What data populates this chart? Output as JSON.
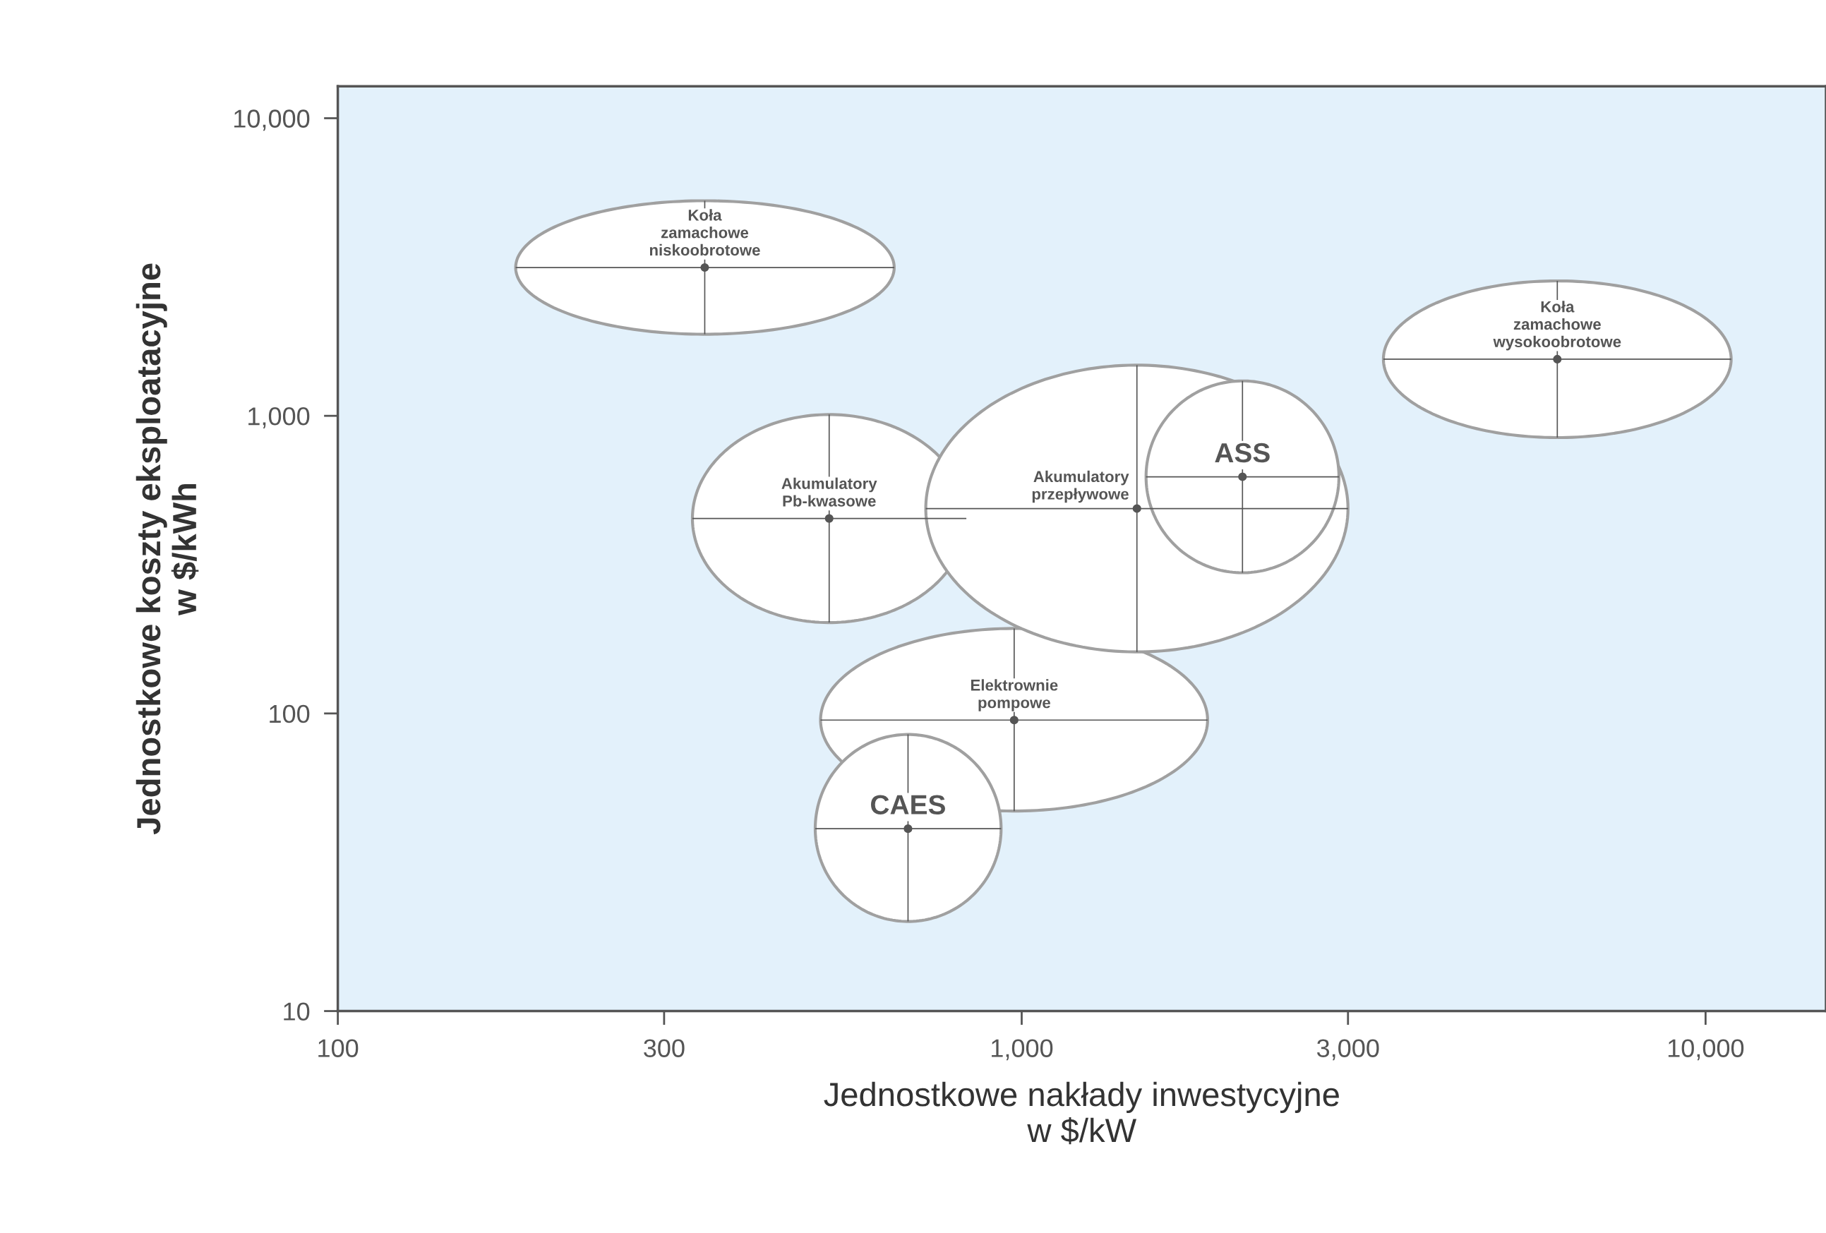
{
  "chart_data": {
    "type": "scatter",
    "xlabel": "Jednostkowe nakłady inwestycyjne\nw $/kW",
    "ylabel": "Jednostkowe koszty eksploatacyjne\nw $/kWh",
    "log": "xy",
    "grid": false,
    "legend": false,
    "marker": "circle",
    "xlim": [
      100,
      15000
    ],
    "ylim": [
      10,
      12800
    ],
    "xticks": [
      100,
      300,
      {
        "value": 1000,
        "label": "1,000"
      },
      {
        "value": 3000,
        "label": "3,000"
      },
      {
        "value": 10000,
        "label": "10,000"
      }
    ],
    "yticks": [
      10,
      100,
      {
        "value": 1000,
        "label": "1,000"
      },
      {
        "value": 10000,
        "label": "10,000"
      }
    ],
    "series": [
      {
        "name": "Koła\nzamachowe\nniskoobrotowe",
        "color": "#555555",
        "x": [
          344
        ],
        "values": [
          3150
        ],
        "xerrors": [
          [
            182,
            651
          ]
        ],
        "errors": [
          [
            1880,
            5280
          ]
        ]
      },
      {
        "name": "Koła\nzamachowe\nwysokoobrotowe",
        "color": "#555555",
        "x": [
          6070
        ],
        "values": [
          1550
        ],
        "xerrors": [
          [
            3380,
            10900
          ]
        ],
        "errors": [
          [
            845,
            2840
          ]
        ]
      },
      {
        "name": "Elektrownie\npompowe",
        "color": "#555555",
        "x": [
          975
        ],
        "values": [
          95
        ],
        "xerrors": [
          [
            508,
            1870
          ]
        ],
        "errors": [
          [
            47,
            193
          ]
        ]
      },
      {
        "name": "CAES",
        "color": "#555555",
        "x": [
          682
        ],
        "values": [
          41
        ],
        "xerrors": [
          [
            499,
            933
          ]
        ],
        "errors": [
          [
            20,
            85
          ]
        ]
      },
      {
        "name": "Akumulatory\nPb-kwasowe",
        "color": "#555555",
        "x": [
          523
        ],
        "values": [
          452
        ],
        "xerrors": [
          [
            330,
            830
          ]
        ],
        "errors": [
          [
            202,
            1010
          ]
        ]
      },
      {
        "name": "Akumulatory\nprzepływowe",
        "color": "#555555",
        "x": [
          1474
        ],
        "values": [
          488
        ],
        "xerrors": [
          [
            724,
            3000
          ]
        ],
        "errors": [
          [
            161,
            1480
          ]
        ]
      },
      {
        "name": "ASS",
        "color": "#555555",
        "x": [
          2103
        ],
        "values": [
          624
        ],
        "xerrors": [
          [
            1520,
            2910
          ]
        ],
        "errors": [
          [
            297,
            1310
          ]
        ]
      }
    ]
  }
}
